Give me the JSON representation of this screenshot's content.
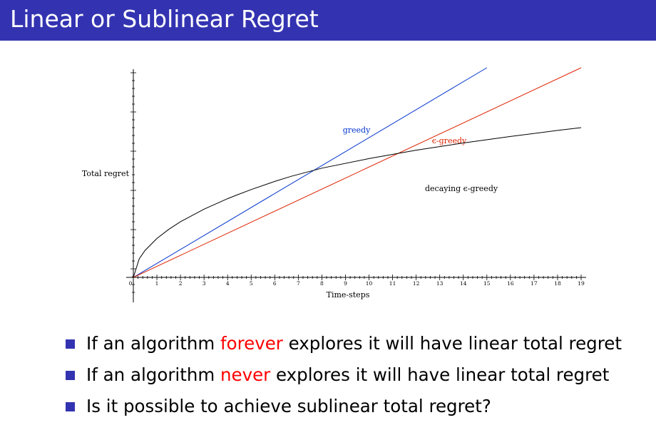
{
  "slide": {
    "title": "Linear or Sublinear Regret",
    "title_bar_color": "#3333b2",
    "bullet_color": "#3333b2",
    "highlight_color": "#ff0000"
  },
  "bullets": [
    {
      "pre": "If an algorithm ",
      "em": "forever",
      "post": " explores it will have linear total regret"
    },
    {
      "pre": "If an algorithm ",
      "em": "never",
      "post": " explores it will have linear total regret"
    },
    {
      "pre": "Is it possible to achieve sublinear total regret?",
      "em": "",
      "post": ""
    }
  ],
  "chart_data": {
    "type": "line",
    "xlabel": "Time-steps",
    "ylabel": "Total regret",
    "xlim": [
      0,
      19
    ],
    "ylim": [
      0,
      9
    ],
    "x_ticks": [
      0,
      1,
      2,
      3,
      4,
      5,
      6,
      7,
      8,
      9,
      10,
      11,
      12,
      13,
      14,
      15,
      16,
      17,
      18,
      19
    ],
    "grid": false,
    "series": [
      {
        "name": "greedy",
        "color": "#0033cc",
        "x": [
          0,
          15
        ],
        "y": [
          0,
          9
        ]
      },
      {
        "name": "ϵ-greedy",
        "color": "#dd2200",
        "x": [
          0,
          19
        ],
        "y": [
          0,
          9
        ]
      },
      {
        "name": "decaying ϵ-greedy",
        "color": "#000000",
        "x": [
          0,
          0.25,
          0.5,
          1,
          1.5,
          2,
          3,
          4,
          4.4,
          5,
          6,
          6.7,
          8,
          10,
          12,
          14,
          16,
          18,
          19
        ],
        "y": [
          0,
          0.8,
          1.16,
          1.67,
          2.06,
          2.39,
          2.93,
          3.38,
          3.54,
          3.77,
          4.12,
          4.34,
          4.69,
          5.1,
          5.46,
          5.77,
          6.05,
          6.31,
          6.43
        ]
      }
    ]
  }
}
